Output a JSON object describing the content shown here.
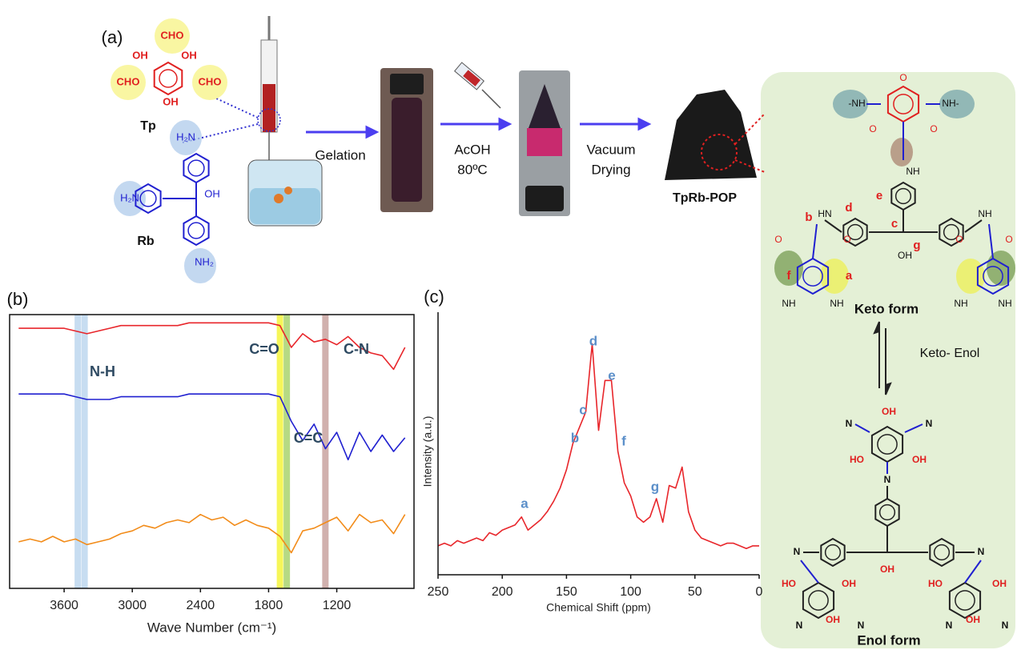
{
  "scheme": {
    "panel_label": "(a)",
    "tp": {
      "name": "Tp",
      "groups": [
        "CHO",
        "CHO",
        "CHO",
        "OH",
        "OH",
        "OH"
      ]
    },
    "rb": {
      "name": "Rb",
      "groups": [
        "H₂N",
        "H₂N",
        "NH₂",
        "OH"
      ]
    },
    "steps": [
      [
        "Gelation"
      ],
      [
        "AcOH",
        "80ºC"
      ],
      [
        "Vacuum",
        "Drying"
      ]
    ],
    "product": "TpRb-POP",
    "keto": {
      "title": "Keto form",
      "groups": [
        "-NH",
        "NH-",
        "O",
        "O",
        "O",
        "NH",
        "OH",
        "HN",
        "NH",
        "O",
        "O",
        "O",
        "O",
        "NH",
        "NH",
        "NH",
        "NH"
      ],
      "site_labels": [
        "a",
        "b",
        "c",
        "d",
        "e",
        "f",
        "g"
      ]
    },
    "equilibrium": "Keto- Enol",
    "enol": {
      "title": "Enol form",
      "groups": [
        "N",
        "N",
        "OH",
        "HO",
        "OH",
        "N",
        "OH",
        "N",
        "N",
        "HO",
        "OH",
        "HO",
        "OH",
        "OH",
        "OH",
        "N",
        "N",
        "N",
        "N"
      ]
    }
  },
  "chart_data": [
    {
      "type": "line",
      "panel_label": "(b)",
      "x_label": "Wave Number (cm⁻¹)",
      "xlim": [
        4080,
        520
      ],
      "ylim": [
        0,
        100
      ],
      "xticks": [
        3600,
        3000,
        2400,
        1800,
        1200
      ],
      "x": [
        4000,
        3900,
        3800,
        3700,
        3600,
        3500,
        3400,
        3300,
        3200,
        3100,
        3000,
        2900,
        2800,
        2700,
        2600,
        2500,
        2400,
        2300,
        2200,
        2100,
        2000,
        1900,
        1800,
        1700,
        1600,
        1500,
        1400,
        1300,
        1200,
        1100,
        1000,
        900,
        800,
        700,
        600
      ],
      "series": [
        {
          "color": "#e8262b",
          "values": [
            95,
            95,
            95,
            95,
            95,
            94,
            93,
            94,
            95,
            96,
            96,
            96,
            96,
            96,
            96,
            97,
            97,
            97,
            97,
            97,
            97,
            97,
            97,
            96,
            88,
            93,
            90,
            91,
            89,
            92,
            88,
            86,
            85,
            80,
            88
          ]
        },
        {
          "color": "#2020d0",
          "values": [
            71,
            71,
            71,
            71,
            71,
            70,
            69,
            69,
            69,
            70,
            70,
            70,
            70,
            70,
            70,
            71,
            71,
            71,
            71,
            71,
            71,
            71,
            71,
            70,
            61,
            54,
            60,
            51,
            57,
            47,
            57,
            50,
            56,
            50,
            55
          ]
        },
        {
          "color": "#f28c1a",
          "values": [
            17,
            18,
            17,
            19,
            17,
            18,
            16,
            17,
            18,
            20,
            21,
            23,
            22,
            24,
            25,
            24,
            27,
            25,
            26,
            23,
            25,
            23,
            22,
            19,
            13,
            21,
            22,
            24,
            26,
            21,
            27,
            24,
            25,
            20,
            27
          ]
        }
      ],
      "bands": [
        {
          "x": 3480,
          "color": "#bdd7ee"
        },
        {
          "x": 3420,
          "color": "#bdd7ee"
        },
        {
          "x": 1700,
          "color": "#f5f53c"
        },
        {
          "x": 1640,
          "color": "#a9d46f"
        },
        {
          "x": 1300,
          "color": "#c9a3a0"
        }
      ],
      "annotations": [
        "N-H",
        "C=O",
        "C=C",
        "C-N"
      ]
    },
    {
      "type": "line",
      "panel_label": "(c)",
      "x_label": "Chemical Shift (ppm)",
      "y_label": "Intensity (a.u.)",
      "xlim": [
        250,
        0
      ],
      "ylim": [
        0,
        100
      ],
      "xticks": [
        250,
        200,
        150,
        100,
        50,
        0
      ],
      "x": [
        250,
        245,
        240,
        235,
        230,
        225,
        220,
        215,
        210,
        205,
        200,
        195,
        190,
        185,
        180,
        175,
        170,
        165,
        160,
        155,
        150,
        145,
        140,
        135,
        130,
        125,
        120,
        115,
        110,
        105,
        100,
        95,
        90,
        85,
        80,
        75,
        70,
        65,
        60,
        55,
        50,
        45,
        40,
        35,
        30,
        25,
        20,
        15,
        10,
        5,
        0
      ],
      "series": [
        {
          "color": "#e8262b",
          "values": [
            11,
            12,
            11,
            13,
            12,
            13,
            14,
            13,
            16,
            15,
            17,
            18,
            19,
            22,
            17,
            19,
            21,
            24,
            28,
            33,
            40,
            50,
            56,
            62,
            88,
            55,
            74,
            74,
            47,
            35,
            30,
            22,
            20,
            22,
            29,
            20,
            34,
            33,
            41,
            24,
            17,
            14,
            13,
            12,
            11,
            12,
            12,
            11,
            10,
            11,
            11
          ]
        }
      ],
      "annotations": [
        "a",
        "b",
        "c",
        "d",
        "e",
        "f",
        "g"
      ]
    }
  ]
}
